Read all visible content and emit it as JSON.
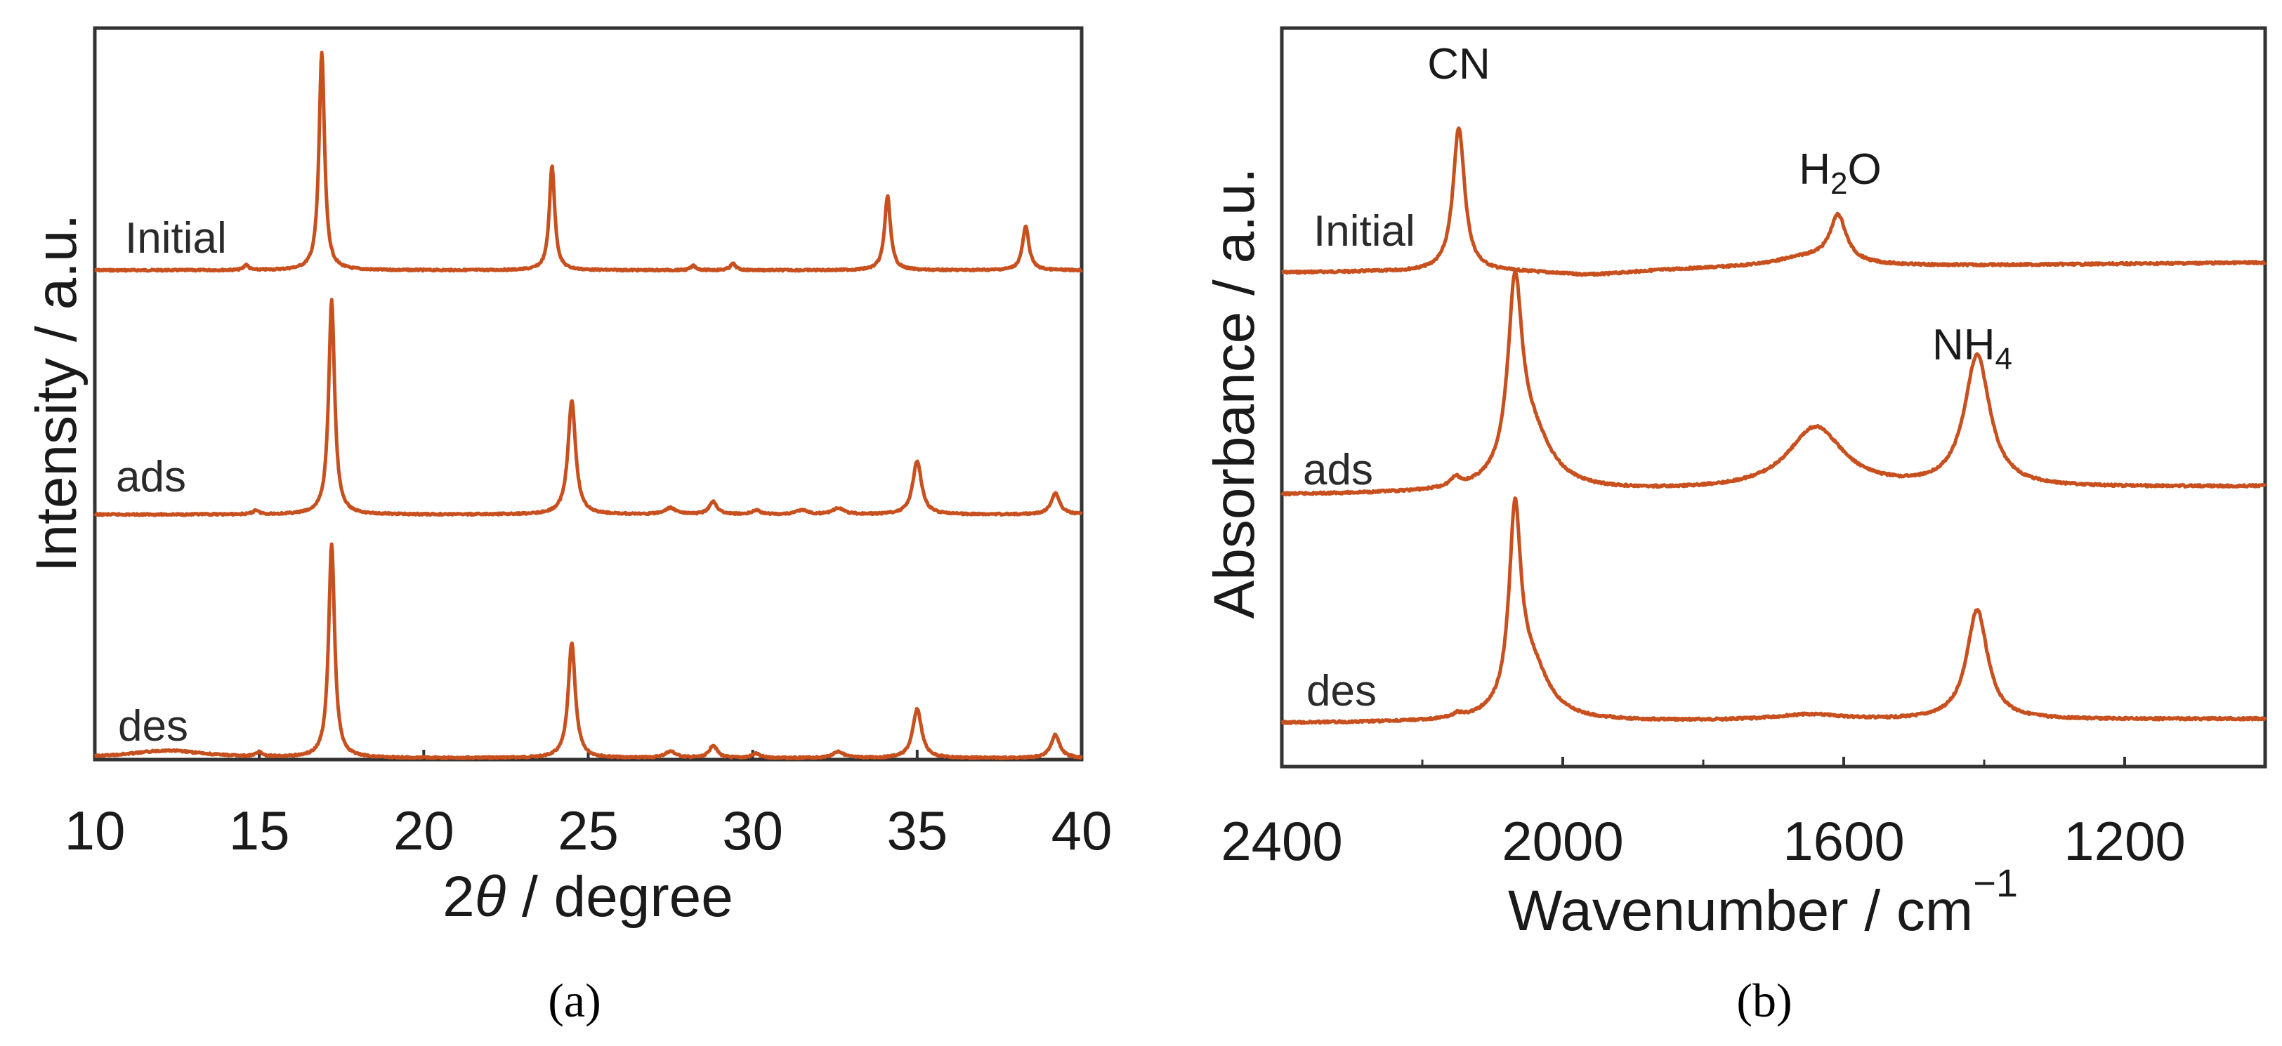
{
  "chart_data": [
    {
      "id": "a",
      "type": "line",
      "panel_label": "(a)",
      "xlabel": "2θ / degree",
      "xlabel_theta": "θ",
      "ylabel": "Intensity / a.u.",
      "xlim": [
        10,
        40
      ],
      "xticks": [
        "10",
        "15",
        "20",
        "25",
        "30",
        "35",
        "40"
      ],
      "series": [
        {
          "name": "Initial",
          "baseline": 0.0,
          "peaks": [
            [
              14.6,
              0.025,
              0.08
            ],
            [
              16.9,
              1.0,
              0.1
            ],
            [
              23.9,
              0.48,
              0.1
            ],
            [
              28.2,
              0.02,
              0.1
            ],
            [
              29.4,
              0.03,
              0.1
            ],
            [
              34.1,
              0.34,
              0.11
            ],
            [
              38.3,
              0.2,
              0.12
            ]
          ]
        },
        {
          "name": "ads",
          "baseline": 0.0,
          "peaks": [
            [
              14.9,
              0.02,
              0.1
            ],
            [
              17.2,
              1.0,
              0.11
            ],
            [
              24.5,
              0.53,
              0.14
            ],
            [
              27.5,
              0.03,
              0.2
            ],
            [
              28.8,
              0.06,
              0.14
            ],
            [
              30.1,
              0.02,
              0.15
            ],
            [
              31.5,
              0.02,
              0.2
            ],
            [
              32.6,
              0.03,
              0.2
            ],
            [
              35.0,
              0.25,
              0.16
            ],
            [
              39.2,
              0.1,
              0.16
            ]
          ]
        },
        {
          "name": "des",
          "baseline": 0.0,
          "peaks": [
            [
              12.2,
              0.035,
              1.4
            ],
            [
              15.0,
              0.02,
              0.12
            ],
            [
              17.2,
              1.0,
              0.11
            ],
            [
              24.5,
              0.54,
              0.13
            ],
            [
              27.5,
              0.03,
              0.2
            ],
            [
              28.8,
              0.06,
              0.14
            ],
            [
              30.1,
              0.02,
              0.15
            ],
            [
              32.6,
              0.03,
              0.2
            ],
            [
              35.0,
              0.23,
              0.16
            ],
            [
              39.2,
              0.11,
              0.16
            ]
          ]
        }
      ]
    },
    {
      "id": "b",
      "type": "line",
      "panel_label": "(b)",
      "xlabel": "Wavenumber / cm",
      "xlabel_sup": "−1",
      "ylabel": "Absorbance / a.u.",
      "xlim": [
        2400,
        1000
      ],
      "xticks": [
        "2400",
        "2000",
        "1600",
        "1200"
      ],
      "series": [
        {
          "name": "Initial",
          "peaks": [
            [
              2148,
              1.0,
              10
            ],
            [
              1650,
              0.07,
              60
            ],
            [
              1608,
              0.32,
              14
            ],
            [
              1960,
              -0.04,
              80
            ]
          ]
        },
        {
          "name": "ads",
          "peaks": [
            [
              2153,
              0.05,
              8
            ],
            [
              2068,
              1.0,
              12
            ],
            [
              2045,
              0.3,
              35
            ],
            [
              1640,
              0.34,
              48
            ],
            [
              1410,
              0.72,
              22
            ]
          ]
        },
        {
          "name": "des",
          "peaks": [
            [
              2150,
              0.02,
              8
            ],
            [
              2068,
              1.0,
              10
            ],
            [
              2045,
              0.28,
              30
            ],
            [
              1650,
              0.03,
              60
            ],
            [
              1410,
              0.58,
              18
            ]
          ]
        }
      ],
      "annotations": [
        "CN",
        "H",
        "2",
        "O",
        "NH",
        "4"
      ]
    }
  ]
}
